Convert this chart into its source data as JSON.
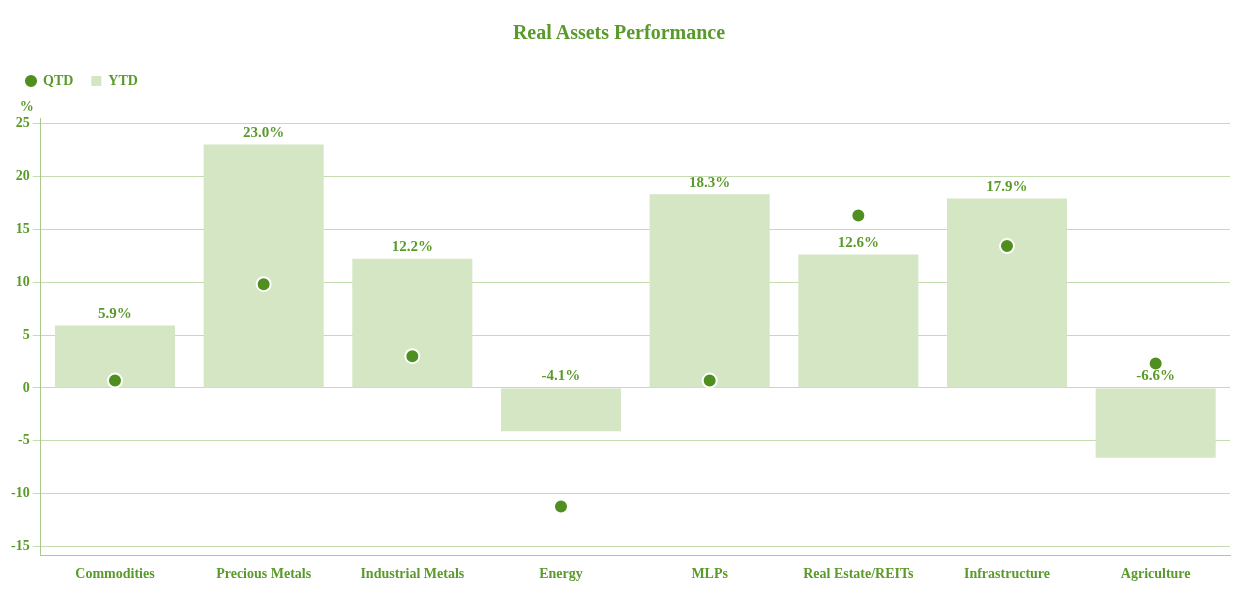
{
  "chart_data": {
    "type": "bar",
    "title": "Real Assets Performance",
    "ylabel": "%",
    "categories": [
      "Commodities",
      "Precious Metals",
      "Industrial Metals",
      "Energy",
      "MLPs",
      "Real Estate/REITs",
      "Infrastructure",
      "Agriculture"
    ],
    "series": [
      {
        "name": "QTD",
        "type": "scatter",
        "marker": "circle",
        "color": "#4e8f1f",
        "values": [
          0.7,
          9.8,
          3.0,
          -11.2,
          0.7,
          16.3,
          13.4,
          2.3
        ]
      },
      {
        "name": "YTD",
        "color": "#d4e6c3",
        "values": [
          5.9,
          23.0,
          12.2,
          -4.1,
          18.3,
          12.6,
          17.9,
          -6.6
        ],
        "value_labels": [
          "5.9%",
          "23.0%",
          "12.2%",
          "-4.1%",
          "18.3%",
          "12.6%",
          "17.9%",
          "-6.6%"
        ]
      }
    ],
    "ylim": [
      -15.8,
      25.5
    ],
    "yticks": [
      -15,
      -10,
      -5,
      0,
      5,
      10,
      15,
      20,
      25
    ],
    "grid": "y",
    "legend": "top left"
  }
}
